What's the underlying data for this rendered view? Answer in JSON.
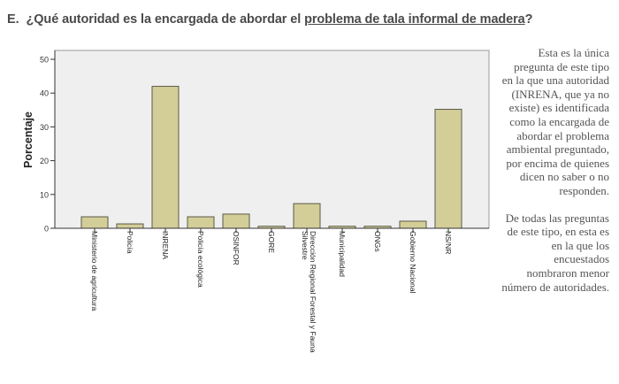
{
  "header": {
    "letter": "E.",
    "question_pre": "¿Qué autoridad es la encargada de abordar el ",
    "question_underlined": "problema de tala informal de madera",
    "question_post": "?"
  },
  "side_text": {
    "paragraph1": "Esta es la única pregunta de este tipo en la que una autoridad (INRENA, que ya no existe) es identificada como la encargada de abordar el problema ambiental preguntado, por encima de quienes dicen no saber o no responden.",
    "paragraph2": "De todas las preguntas de este tipo, en esta es en la que los encuestados nombraron menor número de autoridades."
  },
  "colors": {
    "bar_fill": "#d3cd98",
    "bar_stroke": "#5a5a4a",
    "plot_bg": "#efefef",
    "axis": "#333333"
  },
  "chart_data": {
    "type": "bar",
    "title": "",
    "xlabel": "",
    "ylabel": "Porcentaje",
    "ylim": [
      0,
      50
    ],
    "yticks": [
      0,
      10,
      20,
      30,
      40,
      50
    ],
    "grid": false,
    "legend": null,
    "categories": [
      "Ministerio de agricultura",
      "Policía",
      "INRENA",
      "Policía ecológica",
      "OSINFOR",
      "GORE",
      "Dirección Regional Forestal y Fauna Silvestre",
      "Municipalidad",
      "ONGs",
      "Gobierno Nacional",
      "NS/NR"
    ],
    "values": [
      3.4,
      1.3,
      42.0,
      3.4,
      4.2,
      0.6,
      7.3,
      0.6,
      0.6,
      2.1,
      35.2
    ]
  }
}
